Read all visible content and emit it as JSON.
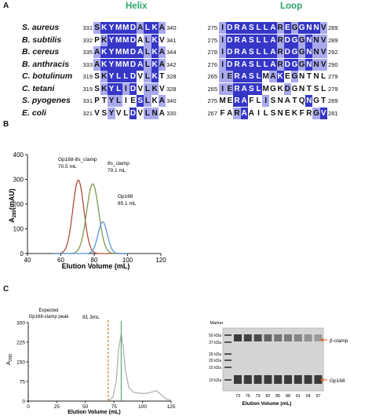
{
  "panelA": {
    "letter": "A",
    "helix_title": "Helix",
    "loop_title": "Loop",
    "rows": [
      {
        "species": "S. aureus",
        "h_start": "331",
        "h_seq": "SKYMMDALKA",
        "h_end": "340",
        "h_shade": "ldddddlddl",
        "l_start": "275",
        "l_seq": "IDRASLLAREGGNNV",
        "l_end": "289",
        "l_shade": "ldddddddldldddl"
      },
      {
        "species": "B. subtilis",
        "h_start": "332",
        "h_seq": "PKYMMDALKV",
        "h_end": "341",
        "h_shade": "_ldddd_ld_",
        "l_start": "275",
        "l_seq": "IDRASLLARDGGNNV",
        "l_end": "289",
        "l_shade": "ldddddddlddldll"
      },
      {
        "species": "B. cereus",
        "h_start": "335",
        "h_seq": "AKYMMDALKA",
        "h_end": "344",
        "h_shade": "lddddddldl",
        "l_start": "278",
        "l_seq": "IDRASLLARDGGNNV",
        "l_end": "292",
        "l_shade": "ldddddddlddldll"
      },
      {
        "species": "B. anthracis",
        "h_start": "333",
        "h_seq": "AKYMMDALKA",
        "h_end": "342",
        "h_shade": "lddddddldl",
        "l_start": "276",
        "l_seq": "IDRASLLARDGGNNV",
        "l_end": "290",
        "l_shade": "ldddddddlddldll"
      },
      {
        "species": "C. botulinum",
        "h_start": "319",
        "h_seq": "SKYLLDVLKT",
        "h_end": "328",
        "h_shade": "_ldddd_ld_",
        "l_start": "265",
        "l_seq": "IERASLMAKEGNTNL",
        "l_end": "279",
        "l_shade": "lldddd_ld_l____"
      },
      {
        "species": "C. tetani",
        "h_start": "319",
        "h_seq": "SKYLIDVLKV",
        "h_end": "328",
        "h_shade": "_lddld_ll_",
        "l_start": "265",
        "l_seq": "IERASLMGKDGNTSL",
        "l_end": "279",
        "l_shade": "lldddd___l_____"
      },
      {
        "species": "S. pyogenes",
        "h_start": "331",
        "h_seq": "PTYLIESLKA",
        "h_end": "340",
        "h_shade": "__ll__dl_l",
        "l_start": "275",
        "l_seq": "MERAFLISNATQNGT",
        "l_end": "289",
        "l_shade": "__dd__l_____d__"
      },
      {
        "species": "E. coli",
        "h_start": "321",
        "h_seq": "VSYVLDVLNA",
        "h_end": "330",
        "h_shade": "__l__d_ll_",
        "l_start": "267",
        "l_seq": "FARAAILSNEKFRGV",
        "l_end": "281",
        "l_shade": "__ld_________ld"
      }
    ]
  },
  "panelB": {
    "letter": "B",
    "ylabel_main": "A",
    "ylabel_sub": "280",
    "ylabel_unit": "(mAU)",
    "xlabel": "Elution Volume (mL)",
    "annotations": [
      {
        "line1": "Gp168-8s_clamp",
        "line2": "70.5 mL"
      },
      {
        "line1": "8s_clamp",
        "line2": "79.1  mL"
      },
      {
        "line1": "Gp168",
        "line2": "85.1 mL"
      }
    ]
  },
  "panelC": {
    "letter": "C",
    "ylabel_main": "A",
    "ylabel_sub": "280",
    "xlabel": "Elution Volume (mL)",
    "expected_line1": "Expected",
    "expected_line2": "Gp168-clamp peak",
    "peak_label": "81.3mL"
  },
  "gel": {
    "marker_label": "Marker",
    "markers": [
      "50 kDa",
      "37 kDa",
      "25 kDa",
      "20 kDa",
      "15 kDa",
      "10 kDa"
    ],
    "lanes": [
      "73",
      "76",
      "79",
      "82",
      "85",
      "88",
      "91",
      "94",
      "97"
    ],
    "xlabel": "Elution Volume (mL)",
    "band_top_label": "β-clamp",
    "band_bottom_label": "Gp168",
    "arrow_color": "#e06a2a"
  },
  "chart_data": [
    {
      "type": "line",
      "title": "",
      "xlabel": "Elution Volume (mL)",
      "ylabel": "A280 (mAU)",
      "xlim": [
        40,
        120
      ],
      "ylim": [
        0,
        400
      ],
      "xticks": [
        40,
        60,
        80,
        100,
        120
      ],
      "yticks": [
        0,
        100,
        200,
        300,
        400
      ],
      "grid": false,
      "series": [
        {
          "name": "Gp168-8s_clamp",
          "color": "#b44a3a",
          "peak_x": 70.5,
          "peak_y": 297,
          "sigma": 3.3
        },
        {
          "name": "8s_clamp",
          "color": "#7a9a4a",
          "peak_x": 79.1,
          "peak_y": 282,
          "sigma": 3.6
        },
        {
          "name": "Gp168",
          "color": "#5a95d8",
          "peak_x": 85.1,
          "peak_y": 128,
          "sigma": 2.8
        }
      ]
    },
    {
      "type": "line",
      "title": "",
      "xlabel": "Elution Volume (mL)",
      "ylabel": "A280",
      "xlim": [
        0,
        125
      ],
      "ylim": [
        0,
        300
      ],
      "xticks": [
        0,
        25,
        50,
        75,
        100,
        125
      ],
      "yticks": [
        0,
        75,
        150,
        225,
        300
      ],
      "grid": false,
      "markers": [
        {
          "name": "Expected Gp168-clamp peak",
          "x": 70,
          "color": "#e07b20"
        },
        {
          "name": "81.3mL",
          "x": 81.3,
          "color": "#3aa64a"
        }
      ],
      "series": [
        {
          "color": "#b8b8b8",
          "points": [
            [
              70,
              2
            ],
            [
              74,
              14
            ],
            [
              77,
              75
            ],
            [
              79,
              195
            ],
            [
              81.3,
              256
            ],
            [
              83,
              212
            ],
            [
              85,
              120
            ],
            [
              88,
              52
            ],
            [
              92,
              34
            ],
            [
              97,
              30
            ],
            [
              102,
              29
            ],
            [
              107,
              33
            ],
            [
              112,
              40
            ],
            [
              116,
              26
            ],
            [
              120,
              10
            ],
            [
              125,
              2
            ]
          ]
        }
      ]
    }
  ]
}
